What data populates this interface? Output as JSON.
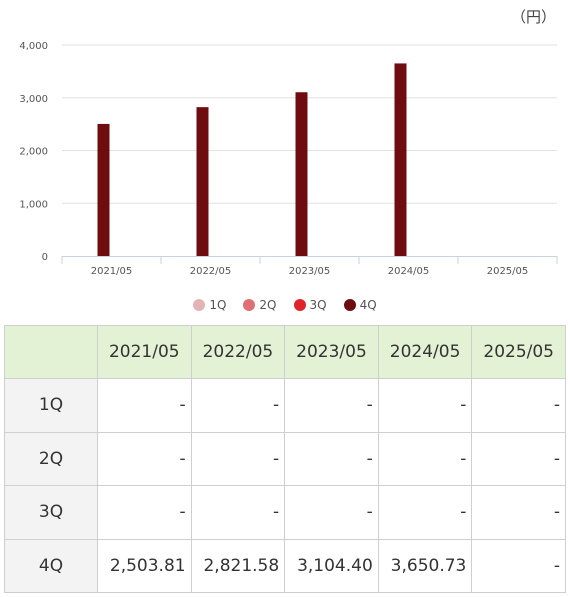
{
  "chart_data": {
    "type": "bar",
    "unit_label": "（円）",
    "categories": [
      "2021/05",
      "2022/05",
      "2023/05",
      "2024/05",
      "2025/05"
    ],
    "series": [
      {
        "name": "1Q",
        "color": "#e4b4b4",
        "values": [
          null,
          null,
          null,
          null,
          null
        ]
      },
      {
        "name": "2Q",
        "color": "#de6f77",
        "values": [
          null,
          null,
          null,
          null,
          null
        ]
      },
      {
        "name": "3Q",
        "color": "#e0242b",
        "values": [
          null,
          null,
          null,
          null,
          null
        ]
      },
      {
        "name": "4Q",
        "color": "#6f0c10",
        "values": [
          2503.81,
          2821.58,
          3104.4,
          3650.73,
          null
        ]
      }
    ],
    "y_ticks": [
      "0",
      "1,000",
      "2,000",
      "3,000",
      "4,000"
    ],
    "ylim": [
      0,
      4000
    ],
    "grid": true,
    "legend_position": "bottom"
  },
  "table": {
    "header_corner": "",
    "columns": [
      "2021/05",
      "2022/05",
      "2023/05",
      "2024/05",
      "2025/05"
    ],
    "rows": [
      {
        "label": "1Q",
        "cells": [
          "-",
          "-",
          "-",
          "-",
          "-"
        ]
      },
      {
        "label": "2Q",
        "cells": [
          "-",
          "-",
          "-",
          "-",
          "-"
        ]
      },
      {
        "label": "3Q",
        "cells": [
          "-",
          "-",
          "-",
          "-",
          "-"
        ]
      },
      {
        "label": "4Q",
        "cells": [
          "2,503.81",
          "2,821.58",
          "3,104.40",
          "3,650.73",
          "-"
        ]
      }
    ]
  }
}
